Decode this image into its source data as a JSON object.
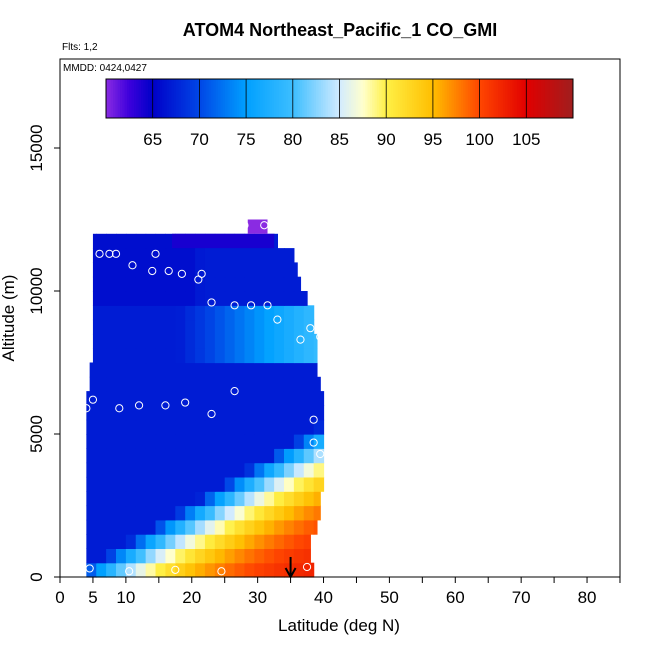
{
  "chart_data": {
    "type": "heatmap",
    "title": "ATOM4 Northeast_Pacific_1 CO_GMI",
    "annotations": [
      "Flts: 1,2",
      "MMDD: 0424,0427"
    ],
    "xlabel": "Latitude (deg N)",
    "ylabel": "Altitude (m)",
    "xlim": [
      0,
      85
    ],
    "ylim": [
      0,
      18000
    ],
    "x_ticks": [
      0,
      5,
      10,
      20,
      30,
      40,
      50,
      60,
      70,
      80
    ],
    "y_ticks": [
      0,
      5000,
      10000,
      15000
    ],
    "colorbar": {
      "min": 60,
      "max": 110,
      "ticks": [
        65,
        70,
        75,
        80,
        85,
        90,
        95,
        100,
        105
      ],
      "placement": "top-inside"
    },
    "latitude_bins": [
      4,
      5.5,
      7,
      8.5,
      10,
      11.5,
      13,
      14.5,
      16,
      17.5,
      19,
      20.5,
      22,
      23.5,
      25,
      26.5,
      28,
      29.5,
      31,
      32.5,
      34,
      35.5,
      37,
      38.5,
      40
    ],
    "altitude_bins": [
      0,
      500,
      1000,
      1500,
      2000,
      2500,
      3000,
      3500,
      4000,
      4500,
      5000,
      5500,
      6000,
      6500,
      7000,
      7500,
      8000,
      8500,
      9000,
      9500,
      10000,
      10500,
      11000,
      11500,
      12000,
      12500
    ],
    "bottom_max_lat": [
      38.5,
      38,
      38,
      39,
      39.5,
      39.5,
      40,
      40,
      40,
      40,
      40,
      40,
      40,
      39.5,
      39,
      39,
      39,
      38.5,
      38.5,
      37.5,
      36.5,
      36,
      35.5,
      33
    ],
    "bottom_min_lat": [
      4,
      4,
      4,
      4,
      4,
      4,
      4,
      4,
      4,
      4,
      4,
      4,
      4,
      4.5,
      4.5,
      5,
      5,
      5,
      5,
      5,
      5,
      5,
      5,
      5
    ],
    "upper_bands": [
      {
        "y0": 11500,
        "y1": 12000,
        "x0": 17,
        "x1": 32.5,
        "value": 64
      },
      {
        "y0": 12000,
        "y1": 12500,
        "x0": 28.5,
        "x1": 31.5,
        "value": 60
      }
    ],
    "observations": [
      {
        "lat": 4.5,
        "alt": 300,
        "value": 84
      },
      {
        "lat": 10.5,
        "alt": 200,
        "value": 102
      },
      {
        "lat": 17.5,
        "alt": 250,
        "value": 104
      },
      {
        "lat": 24.5,
        "alt": 200,
        "value": 105
      },
      {
        "lat": 37.5,
        "alt": 350,
        "value": 103
      },
      {
        "lat": 39.5,
        "alt": 4300,
        "value": 92
      },
      {
        "lat": 38.5,
        "alt": 4700,
        "value": 92
      },
      {
        "lat": 38.5,
        "alt": 5500,
        "value": 90
      },
      {
        "lat": 4,
        "alt": 5900,
        "value": 68
      },
      {
        "lat": 5,
        "alt": 6200,
        "value": 68
      },
      {
        "lat": 9,
        "alt": 5900,
        "value": 72
      },
      {
        "lat": 12,
        "alt": 6000,
        "value": 74
      },
      {
        "lat": 16,
        "alt": 6000,
        "value": 76
      },
      {
        "lat": 19,
        "alt": 6100,
        "value": 78
      },
      {
        "lat": 23,
        "alt": 5700,
        "value": 80
      },
      {
        "lat": 26.5,
        "alt": 6500,
        "value": 80
      },
      {
        "lat": 36.5,
        "alt": 8300,
        "value": 88
      },
      {
        "lat": 38,
        "alt": 8700,
        "value": 86
      },
      {
        "lat": 39.5,
        "alt": 8400,
        "value": 86
      },
      {
        "lat": 23,
        "alt": 9600,
        "value": 72
      },
      {
        "lat": 26.5,
        "alt": 9500,
        "value": 74
      },
      {
        "lat": 29,
        "alt": 9500,
        "value": 75
      },
      {
        "lat": 31.5,
        "alt": 9500,
        "value": 77
      },
      {
        "lat": 33,
        "alt": 9000,
        "value": 78
      },
      {
        "lat": 6,
        "alt": 11300,
        "value": 66
      },
      {
        "lat": 7.5,
        "alt": 11300,
        "value": 66
      },
      {
        "lat": 8.5,
        "alt": 11300,
        "value": 66
      },
      {
        "lat": 11,
        "alt": 10900,
        "value": 66
      },
      {
        "lat": 14,
        "alt": 10700,
        "value": 66
      },
      {
        "lat": 14.5,
        "alt": 11300,
        "value": 66
      },
      {
        "lat": 16.5,
        "alt": 10700,
        "value": 67
      },
      {
        "lat": 18.5,
        "alt": 10600,
        "value": 67
      },
      {
        "lat": 21,
        "alt": 10400,
        "value": 67
      },
      {
        "lat": 21.5,
        "alt": 10600,
        "value": 67
      },
      {
        "lat": 28,
        "alt": 12300,
        "value": 60
      },
      {
        "lat": 31,
        "alt": 12300,
        "value": 60
      }
    ],
    "arrow_marker": {
      "lat": 35,
      "alt_top": 700,
      "alt_bottom": 0
    }
  }
}
